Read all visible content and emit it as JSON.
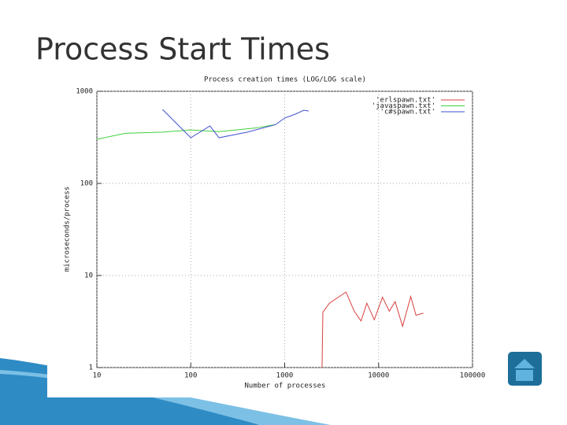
{
  "title": "Process Start Times",
  "chart_data": {
    "type": "line",
    "title": "Process creation times (LOG/LOG scale)",
    "x_label": "Number of processes",
    "y_label": "microseconds/process",
    "xscale": "log",
    "yscale": "log",
    "grid": true,
    "legend": "top-right",
    "xlim": [
      10,
      100000
    ],
    "xticks": [
      10,
      100,
      1000,
      10000,
      100000
    ],
    "ylim": [
      1,
      1000
    ],
    "yticks": [
      1,
      10,
      100,
      1000
    ],
    "series": [
      {
        "name": "'erlspawn.txt'",
        "color": "#d84040",
        "x": [
          2500,
          2550,
          3000,
          4000,
          4500,
          5500,
          6500,
          7500,
          9000,
          11000,
          13000,
          15000,
          18000,
          22000,
          25000,
          30000
        ],
        "values": [
          1,
          4,
          5,
          6.1,
          6.6,
          4.1,
          3.2,
          5,
          3.3,
          5.8,
          4.1,
          5.2,
          2.8,
          5.9,
          3.7,
          3.9
        ]
      },
      {
        "name": "'javaspawn.txt'",
        "color": "#40d040",
        "x": [
          10,
          20,
          50,
          100,
          200,
          500,
          800
        ],
        "values": [
          301,
          350,
          360,
          380,
          365,
          400,
          435
        ]
      },
      {
        "name": "'c#spawn.txt'",
        "color": "#4050d0",
        "x": [
          50,
          100,
          160,
          200,
          400,
          800,
          1000,
          1300,
          1600,
          1800
        ],
        "values": [
          636,
          313,
          420,
          313,
          360,
          435,
          512,
          565,
          623,
          610
        ]
      }
    ]
  }
}
